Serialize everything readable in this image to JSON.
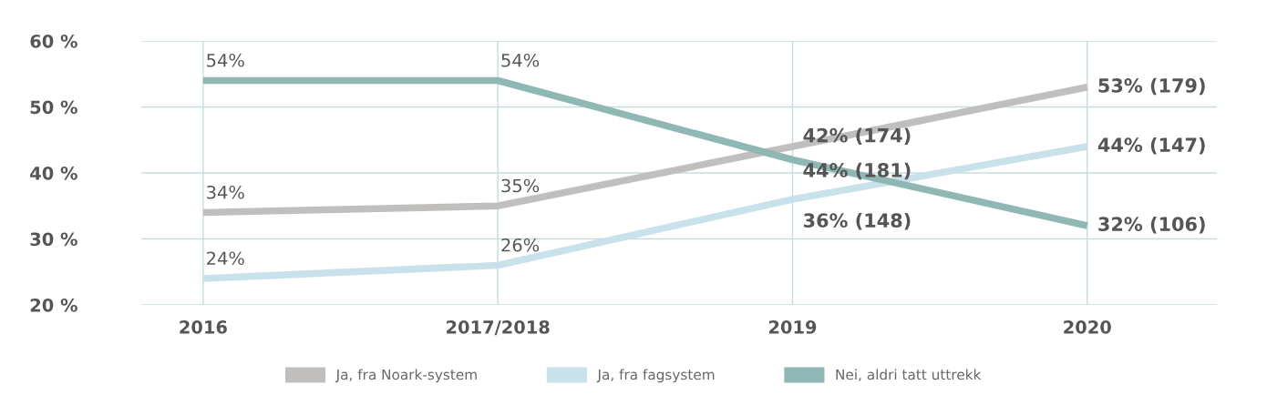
{
  "chart_data": {
    "type": "line",
    "categories": [
      "2016",
      "2017/2018",
      "2019",
      "2020"
    ],
    "ylim": [
      20,
      60
    ],
    "yticks": [
      {
        "value": 20,
        "label": "20 %"
      },
      {
        "value": 30,
        "label": "30 %"
      },
      {
        "value": 40,
        "label": "40 %"
      },
      {
        "value": 50,
        "label": "50 %"
      },
      {
        "value": 60,
        "label": "60 %"
      }
    ],
    "grid": true,
    "legend": "bottom",
    "marker": "none",
    "line_style": "solid",
    "series": [
      {
        "name": "Ja, fra Noark-system",
        "color": "#c0bfbe",
        "values": [
          34,
          35,
          44,
          53
        ],
        "value_labels": [
          "34%",
          "35%",
          "44% (181)",
          "53% (179)"
        ]
      },
      {
        "name": "Ja, fra fagsystem",
        "color": "#c9e1ea",
        "values": [
          24,
          26,
          36,
          44
        ],
        "value_labels": [
          "24%",
          "26%",
          "36% (148)",
          "44% (147)"
        ]
      },
      {
        "name": "Nei, aldri tatt uttrekk",
        "color": "#8fb8b5",
        "values": [
          54,
          54,
          42,
          32
        ],
        "value_labels": [
          "54%",
          "54%",
          "42% (174)",
          "32% (106)"
        ]
      }
    ]
  }
}
